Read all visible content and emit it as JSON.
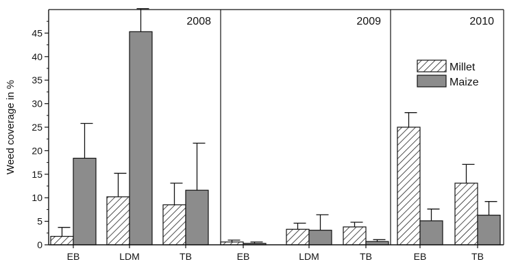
{
  "chart_data": {
    "type": "bar",
    "ylabel": "Weed coverage in %",
    "ylim": [
      0,
      50
    ],
    "yticks": [
      0,
      5,
      10,
      15,
      20,
      25,
      30,
      35,
      40,
      45
    ],
    "grid": false,
    "legend_position": "top-right (in 2010 panel)",
    "legend": [
      {
        "name": "Millet",
        "pattern": "hatched"
      },
      {
        "name": "Maize",
        "pattern": "solid",
        "color": "#8c8c8c"
      }
    ],
    "panels": [
      {
        "year": "2008",
        "categories": [
          "EB",
          "LDM",
          "TB"
        ],
        "series": [
          {
            "name": "Millet",
            "values": [
              1.8,
              10.2,
              8.5
            ],
            "errors": [
              1.9,
              5.0,
              4.6
            ]
          },
          {
            "name": "Maize",
            "values": [
              18.4,
              45.3,
              11.6
            ],
            "errors": [
              7.4,
              4.9,
              10.0
            ]
          }
        ]
      },
      {
        "year": "2009",
        "categories": [
          "EB",
          "LDM",
          "TB"
        ],
        "series": [
          {
            "name": "Millet",
            "values": [
              0.6,
              3.3,
              3.8
            ],
            "errors": [
              0.4,
              1.3,
              1.0
            ]
          },
          {
            "name": "Maize",
            "values": [
              0.3,
              3.1,
              0.7
            ],
            "errors": [
              0.3,
              3.3,
              0.4
            ]
          }
        ]
      },
      {
        "year": "2010",
        "categories": [
          "EB",
          "TB"
        ],
        "series": [
          {
            "name": "Millet",
            "values": [
              25.0,
              13.1
            ],
            "errors": [
              3.1,
              4.0
            ]
          },
          {
            "name": "Maize",
            "values": [
              5.1,
              6.3
            ],
            "errors": [
              2.5,
              2.9
            ]
          }
        ]
      }
    ]
  }
}
